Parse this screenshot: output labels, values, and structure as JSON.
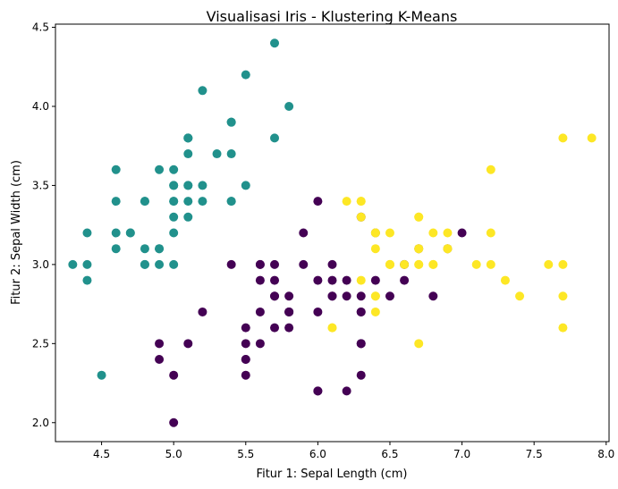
{
  "chart_data": {
    "type": "scatter",
    "title": "Visualisasi Iris - Klustering K-Means",
    "xlabel": "Fitur 1: Sepal Length (cm)",
    "ylabel": "Fitur 2: Sepal Width (cm)",
    "xlim": [
      4.18,
      8.02
    ],
    "ylim": [
      1.88,
      4.52
    ],
    "xticks": [
      4.5,
      5.0,
      5.5,
      6.0,
      6.5,
      7.0,
      7.5,
      8.0
    ],
    "xtick_labels": [
      "4.5",
      "5.0",
      "5.5",
      "6.0",
      "6.5",
      "7.0",
      "7.5",
      "8.0"
    ],
    "yticks": [
      2.0,
      2.5,
      3.0,
      3.5,
      4.0,
      4.5
    ],
    "ytick_labels": [
      "2.0",
      "2.5",
      "3.0",
      "3.5",
      "4.0",
      "4.5"
    ],
    "grid": false,
    "legend": "none",
    "series": [
      {
        "color": "#440154",
        "points": [
          [
            7.0,
            3.2
          ],
          [
            6.4,
            3.2
          ],
          [
            6.9,
            3.1
          ],
          [
            5.5,
            2.3
          ],
          [
            6.5,
            2.8
          ],
          [
            5.7,
            2.8
          ],
          [
            6.3,
            3.3
          ],
          [
            4.9,
            2.4
          ],
          [
            6.6,
            2.9
          ],
          [
            5.2,
            2.7
          ],
          [
            5.0,
            2.0
          ],
          [
            5.9,
            3.0
          ],
          [
            6.0,
            2.2
          ],
          [
            6.1,
            2.9
          ],
          [
            5.6,
            2.9
          ],
          [
            6.7,
            3.1
          ],
          [
            5.6,
            3.0
          ],
          [
            5.8,
            2.7
          ],
          [
            6.2,
            2.2
          ],
          [
            5.6,
            2.5
          ],
          [
            5.9,
            3.2
          ],
          [
            6.1,
            2.8
          ],
          [
            6.3,
            2.5
          ],
          [
            6.1,
            2.8
          ],
          [
            6.4,
            2.9
          ],
          [
            6.6,
            3.0
          ],
          [
            6.8,
            2.8
          ],
          [
            6.0,
            2.9
          ],
          [
            5.7,
            2.6
          ],
          [
            5.5,
            2.4
          ],
          [
            5.5,
            2.4
          ],
          [
            5.8,
            2.7
          ],
          [
            6.0,
            2.7
          ],
          [
            5.4,
            3.0
          ],
          [
            6.0,
            3.4
          ],
          [
            6.3,
            2.3
          ],
          [
            5.6,
            3.0
          ],
          [
            5.5,
            2.5
          ],
          [
            5.5,
            2.6
          ],
          [
            6.1,
            3.0
          ],
          [
            5.8,
            2.6
          ],
          [
            5.0,
            2.3
          ],
          [
            5.6,
            2.7
          ],
          [
            5.7,
            3.0
          ],
          [
            5.7,
            2.9
          ],
          [
            6.2,
            2.9
          ],
          [
            5.1,
            2.5
          ],
          [
            5.7,
            2.8
          ],
          [
            5.8,
            2.7
          ],
          [
            4.9,
            2.5
          ],
          [
            6.3,
            2.5
          ],
          [
            6.0,
            2.2
          ],
          [
            5.8,
            2.8
          ],
          [
            6.3,
            2.7
          ],
          [
            6.3,
            2.8
          ],
          [
            6.2,
            2.8
          ],
          [
            6.3,
            2.7
          ]
        ]
      },
      {
        "color": "#21918c",
        "points": [
          [
            5.1,
            3.5
          ],
          [
            4.9,
            3.0
          ],
          [
            4.7,
            3.2
          ],
          [
            4.6,
            3.1
          ],
          [
            5.0,
            3.6
          ],
          [
            5.4,
            3.9
          ],
          [
            4.6,
            3.4
          ],
          [
            5.0,
            3.4
          ],
          [
            4.4,
            2.9
          ],
          [
            4.9,
            3.1
          ],
          [
            5.4,
            3.7
          ],
          [
            4.8,
            3.4
          ],
          [
            4.8,
            3.0
          ],
          [
            4.3,
            3.0
          ],
          [
            5.8,
            4.0
          ],
          [
            5.7,
            4.4
          ],
          [
            5.4,
            3.9
          ],
          [
            5.1,
            3.5
          ],
          [
            5.7,
            3.8
          ],
          [
            5.1,
            3.8
          ],
          [
            5.4,
            3.4
          ],
          [
            5.1,
            3.7
          ],
          [
            4.6,
            3.6
          ],
          [
            5.1,
            3.3
          ],
          [
            4.8,
            3.4
          ],
          [
            5.0,
            3.0
          ],
          [
            5.0,
            3.4
          ],
          [
            5.2,
            3.5
          ],
          [
            5.2,
            3.4
          ],
          [
            4.7,
            3.2
          ],
          [
            4.8,
            3.1
          ],
          [
            5.4,
            3.4
          ],
          [
            5.2,
            4.1
          ],
          [
            5.5,
            4.2
          ],
          [
            4.9,
            3.1
          ],
          [
            5.0,
            3.2
          ],
          [
            5.5,
            3.5
          ],
          [
            4.9,
            3.6
          ],
          [
            4.4,
            3.0
          ],
          [
            5.1,
            3.4
          ],
          [
            5.0,
            3.5
          ],
          [
            4.5,
            2.3
          ],
          [
            4.4,
            3.2
          ],
          [
            5.0,
            3.5
          ],
          [
            5.1,
            3.8
          ],
          [
            4.8,
            3.0
          ],
          [
            5.1,
            3.8
          ],
          [
            4.6,
            3.2
          ],
          [
            5.3,
            3.7
          ],
          [
            5.0,
            3.3
          ]
        ]
      },
      {
        "color": "#fde725",
        "points": [
          [
            6.3,
            3.3
          ],
          [
            6.5,
            3.0
          ],
          [
            7.1,
            3.0
          ],
          [
            6.3,
            2.9
          ],
          [
            7.6,
            3.0
          ],
          [
            7.3,
            2.9
          ],
          [
            6.7,
            2.5
          ],
          [
            7.2,
            3.6
          ],
          [
            6.5,
            3.2
          ],
          [
            6.4,
            2.7
          ],
          [
            6.8,
            3.0
          ],
          [
            6.4,
            3.2
          ],
          [
            6.5,
            3.0
          ],
          [
            7.7,
            3.8
          ],
          [
            7.7,
            2.6
          ],
          [
            6.9,
            3.2
          ],
          [
            7.7,
            2.8
          ],
          [
            6.7,
            3.3
          ],
          [
            7.2,
            3.2
          ],
          [
            6.2,
            3.4
          ],
          [
            7.2,
            3.0
          ],
          [
            7.4,
            2.8
          ],
          [
            7.9,
            3.8
          ],
          [
            6.4,
            2.8
          ],
          [
            6.1,
            2.6
          ],
          [
            7.7,
            3.0
          ],
          [
            6.3,
            3.4
          ],
          [
            6.4,
            3.1
          ],
          [
            6.9,
            3.1
          ],
          [
            6.7,
            3.1
          ],
          [
            6.9,
            3.1
          ],
          [
            6.8,
            3.2
          ],
          [
            6.7,
            3.3
          ],
          [
            6.7,
            3.0
          ],
          [
            6.5,
            3.0
          ],
          [
            6.7,
            3.1
          ],
          [
            6.6,
            3.0
          ],
          [
            6.1,
            2.6
          ],
          [
            6.4,
            2.8
          ],
          [
            6.4,
            3.2
          ],
          [
            6.3,
            3.4
          ],
          [
            6.8,
            3.0
          ],
          [
            6.7,
            3.0
          ]
        ]
      }
    ]
  }
}
